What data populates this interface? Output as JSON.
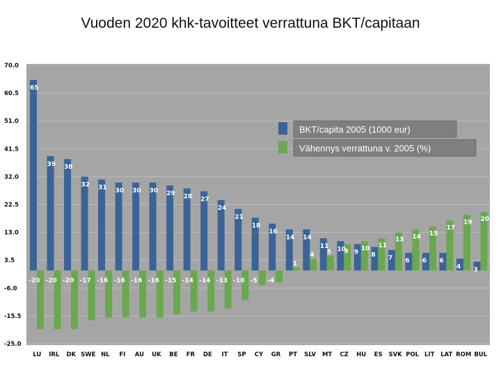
{
  "title": "Vuoden 2020 khk-tavoitteet verrattuna BKT/capitaan",
  "chart_data": {
    "type": "bar",
    "title": "Vuoden 2020 khk-tavoitteet verrattuna BKT/capitaan",
    "categories": [
      "LU",
      "IRL",
      "DK",
      "SWE",
      "NL",
      "FI",
      "AU",
      "UK",
      "BE",
      "FR",
      "DE",
      "IT",
      "SP",
      "CY",
      "GR",
      "PT",
      "SLV",
      "MT",
      "CZ",
      "HU",
      "ES",
      "SVK",
      "POL",
      "LIT",
      "LAT",
      "ROM",
      "BUL"
    ],
    "series": [
      {
        "name": "BKT/capita 2005 (1000 eur)",
        "color": "#3a6496",
        "values": [
          65,
          39,
          38,
          32,
          31,
          30,
          30,
          30,
          29,
          28,
          27,
          24,
          21,
          18,
          16,
          14,
          14,
          11,
          10,
          9,
          8,
          7,
          6,
          6,
          6,
          4,
          3
        ],
        "labels": [
          "65",
          "39",
          "38",
          "32",
          "31",
          "30",
          "30",
          "30",
          "29",
          "28",
          "27",
          "24",
          "21",
          "18",
          "16",
          "14",
          "14",
          "11",
          "10",
          "9",
          "8",
          "7",
          "6",
          "6",
          "6",
          "4",
          "3"
        ]
      },
      {
        "name": "Vähennys verrattuna v. 2005 (%)",
        "color": "#6aa84f",
        "values": [
          -20,
          -20,
          -20,
          -17,
          -16,
          -16,
          -16,
          -16,
          -15,
          -14,
          -14,
          -13,
          -10,
          -5,
          -4,
          1,
          4,
          5,
          9,
          10,
          11,
          13,
          14,
          15,
          17,
          19,
          20
        ],
        "labels": [
          "-20",
          "-20",
          "-20",
          "-17",
          "-16",
          "-16",
          "-16",
          "-16",
          "-15",
          "-14",
          "-14",
          "-13",
          "-10",
          "-5",
          "-4",
          "1",
          "4",
          "5",
          "9",
          "10",
          "11",
          "13",
          "14",
          "15",
          "17",
          "19",
          "20"
        ]
      }
    ],
    "yticks": [
      "70.0",
      "60.5",
      "51.0",
      "41.5",
      "32.0",
      "22.5",
      "13.0",
      "3.5",
      "-6.0",
      "-15.5",
      "-25.0"
    ],
    "ylim": [
      -25,
      70
    ],
    "grid": true,
    "legend": "top-right",
    "plot_background": "#a5a5a5"
  }
}
